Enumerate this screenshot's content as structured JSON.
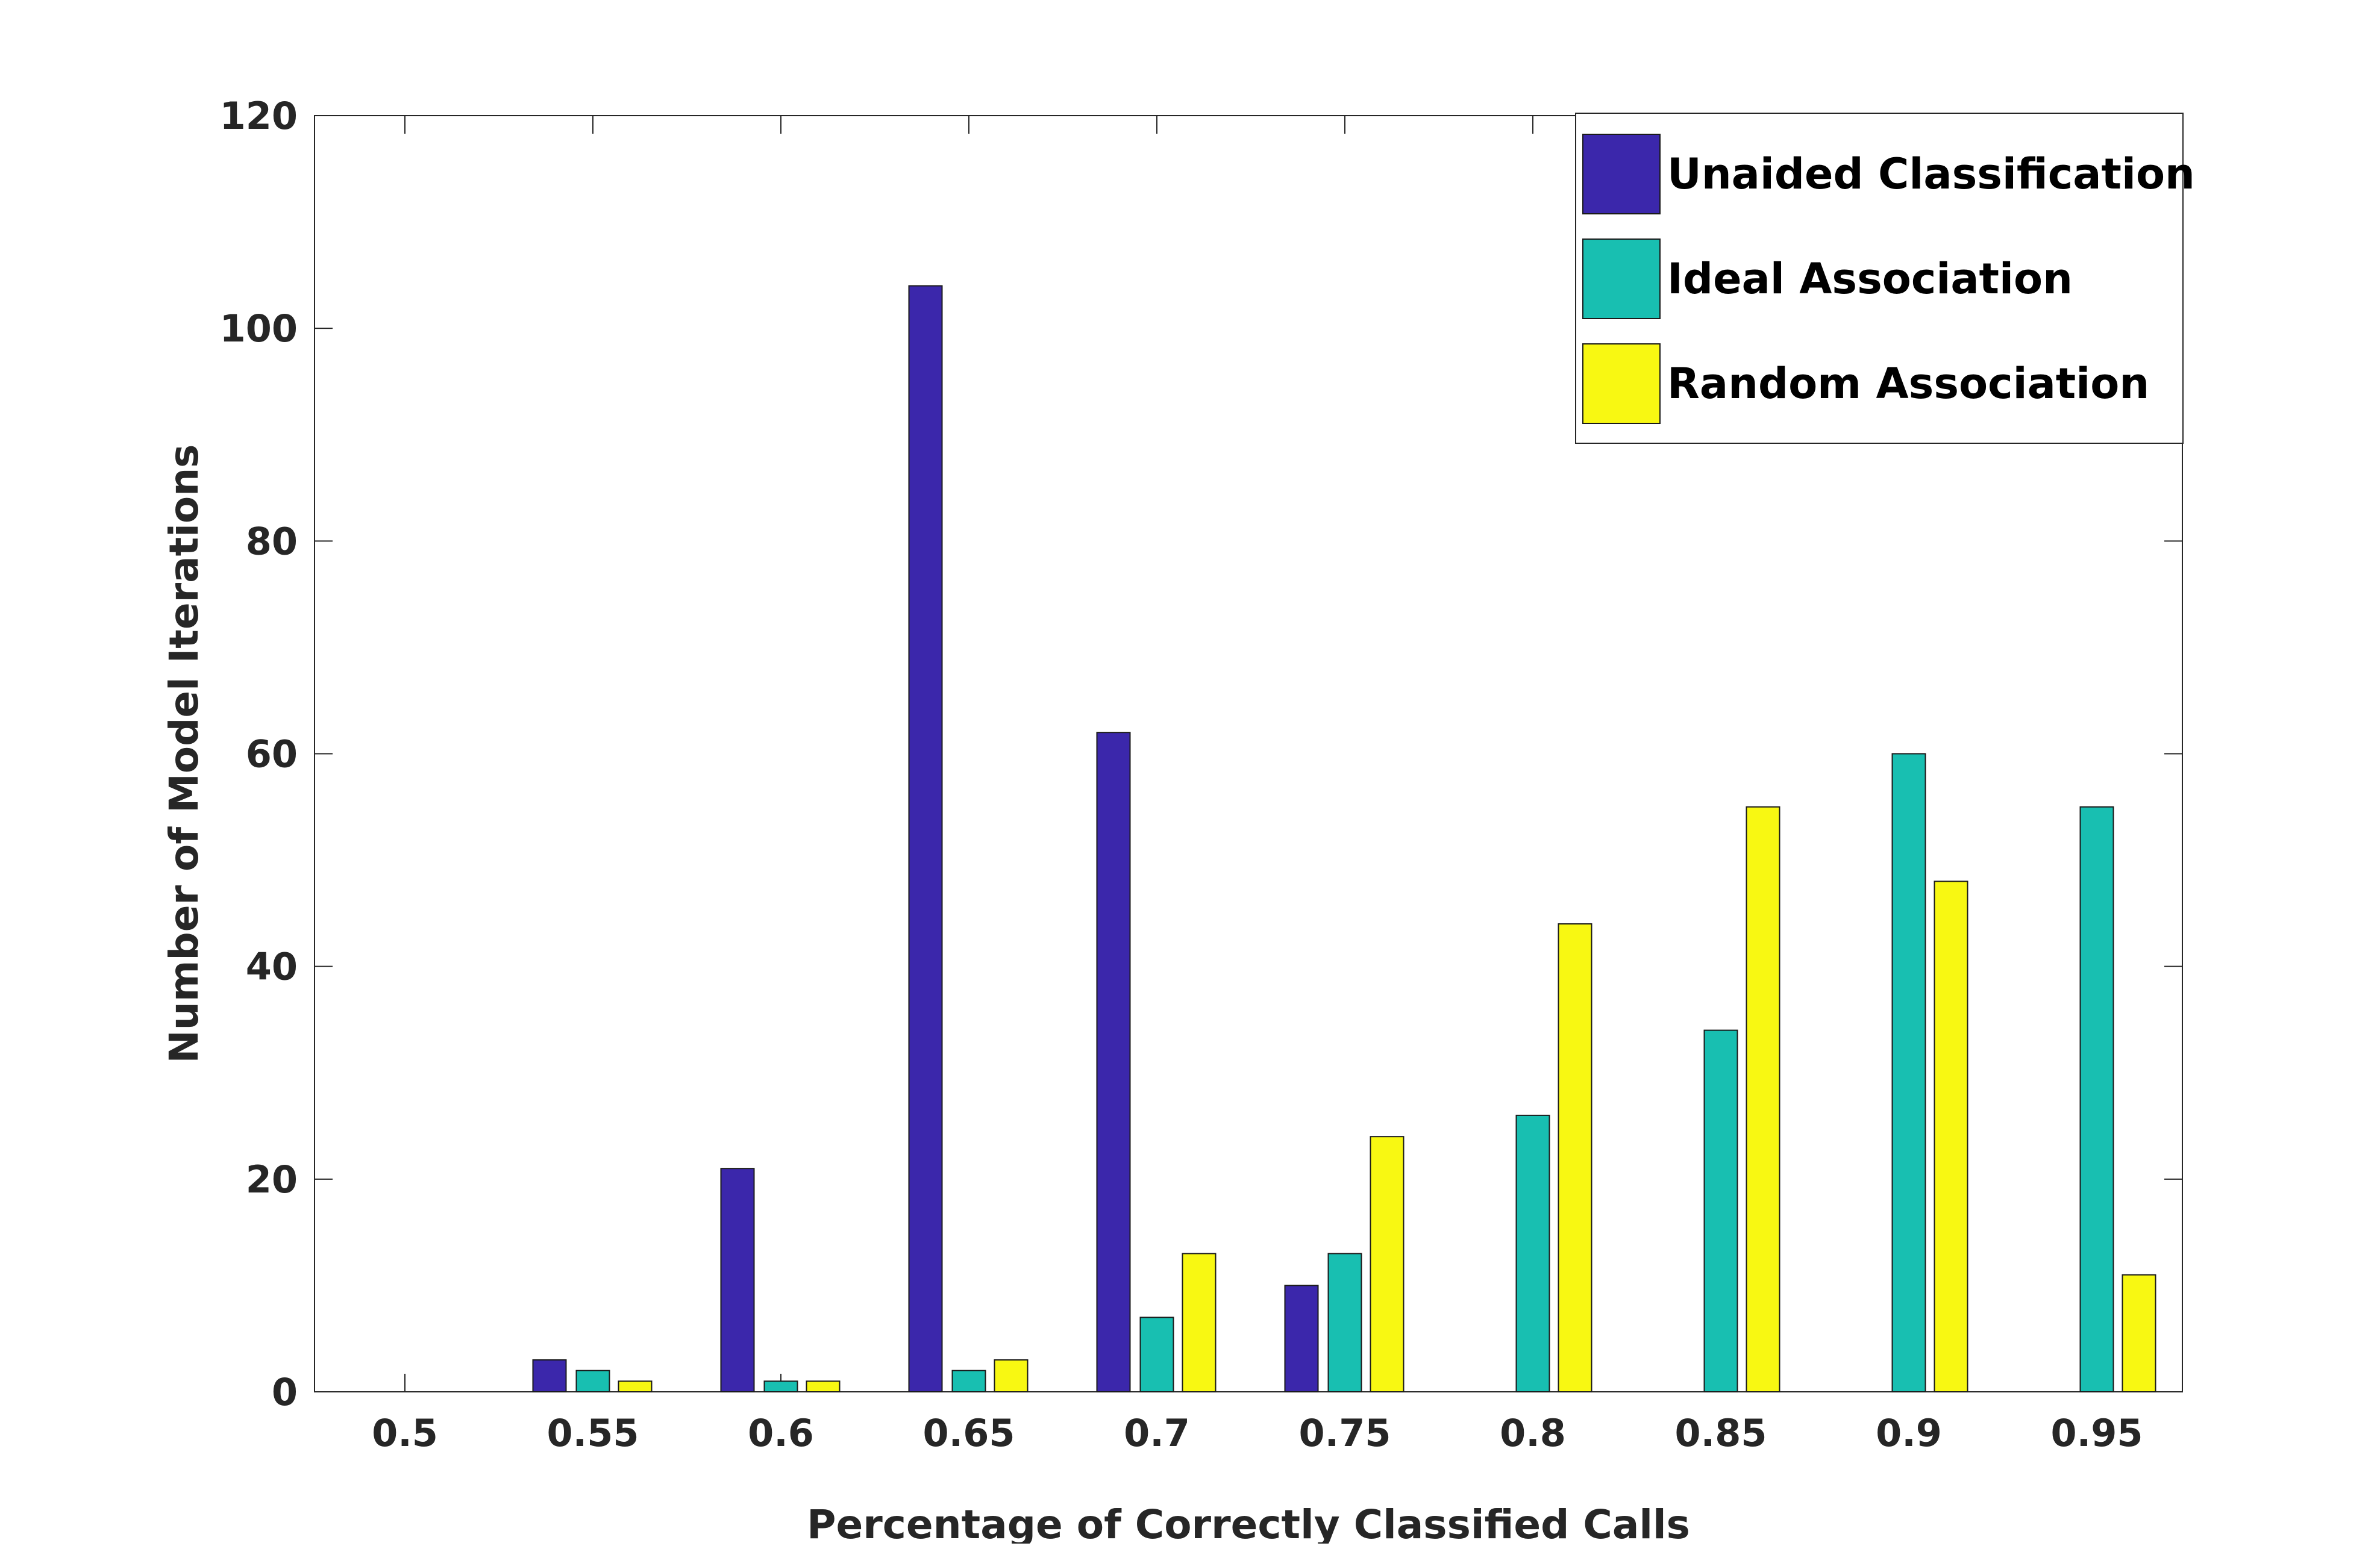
{
  "chart_data": {
    "type": "bar",
    "title": "",
    "xlabel": "Percentage of Correctly Classified Calls",
    "ylabel": "Number of Model Iterations",
    "ylim": [
      0,
      120
    ],
    "yticks": [
      "0",
      "20",
      "40",
      "60",
      "80",
      "100",
      "120"
    ],
    "categories": [
      "0.5",
      "0.55",
      "0.6",
      "0.65",
      "0.7",
      "0.75",
      "0.8",
      "0.85",
      "0.9",
      "0.95"
    ],
    "series": [
      {
        "name": "Unaided Classification",
        "color": "#3b27ab",
        "values": [
          0,
          3,
          21,
          104,
          62,
          10,
          0,
          0,
          0,
          0
        ]
      },
      {
        "name": "Ideal Association",
        "color": "#18bfb1",
        "values": [
          0,
          2,
          1,
          2,
          7,
          13,
          26,
          34,
          60,
          55
        ]
      },
      {
        "name": "Random Association",
        "color": "#f8f812",
        "values": [
          0,
          1,
          1,
          3,
          13,
          24,
          44,
          55,
          48,
          11
        ]
      }
    ],
    "grid": false,
    "legend_position": "top-right"
  }
}
